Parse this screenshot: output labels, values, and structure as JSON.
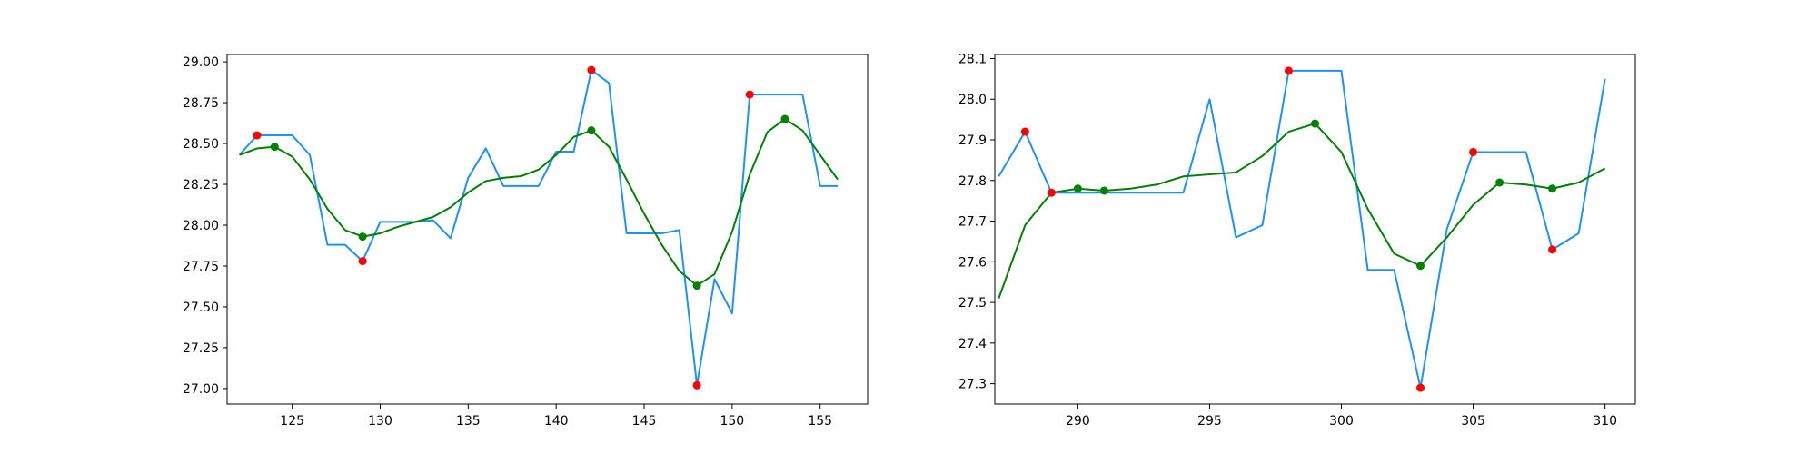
{
  "chart_data": [
    {
      "type": "line",
      "title": "",
      "xlabel": "",
      "ylabel": "",
      "xlim": [
        121.3,
        157.7
      ],
      "ylim": [
        26.905,
        29.045
      ],
      "xticks": [
        125,
        130,
        135,
        140,
        145,
        150,
        155
      ],
      "yticks": [
        27.0,
        27.25,
        27.5,
        27.75,
        28.0,
        28.25,
        28.5,
        28.75,
        29.0
      ],
      "ytick_decimals": 2,
      "grid": false,
      "series": [
        {
          "kind": "line",
          "color": "#1E90FF",
          "x": [
            122,
            123,
            124,
            125,
            126,
            127,
            128,
            129,
            130,
            131,
            132,
            133,
            134,
            135,
            136,
            137,
            138,
            139,
            140,
            141,
            142,
            143,
            144,
            145,
            146,
            147,
            148,
            149,
            150,
            151,
            152,
            153,
            154,
            155,
            156
          ],
          "y": [
            28.43,
            28.55,
            28.55,
            28.55,
            28.43,
            27.88,
            27.88,
            27.78,
            28.02,
            28.02,
            28.02,
            28.03,
            27.92,
            28.29,
            28.47,
            28.24,
            28.24,
            28.24,
            28.45,
            28.45,
            28.95,
            28.87,
            27.95,
            27.95,
            27.95,
            27.97,
            27.02,
            27.67,
            27.46,
            28.8,
            28.8,
            28.8,
            28.8,
            28.24,
            28.24
          ]
        },
        {
          "kind": "line",
          "color": "#008000",
          "x": [
            122,
            123,
            124,
            125,
            126,
            127,
            128,
            129,
            130,
            131,
            132,
            133,
            134,
            135,
            136,
            137,
            138,
            139,
            140,
            141,
            142,
            143,
            144,
            145,
            146,
            147,
            148,
            149,
            150,
            151,
            152,
            153,
            154,
            155,
            156
          ],
          "y": [
            28.43,
            28.47,
            28.48,
            28.42,
            28.28,
            28.1,
            27.97,
            27.93,
            27.95,
            27.99,
            28.02,
            28.05,
            28.11,
            28.2,
            28.27,
            28.29,
            28.3,
            28.34,
            28.43,
            28.54,
            28.58,
            28.48,
            28.28,
            28.07,
            27.88,
            27.72,
            27.63,
            27.7,
            27.96,
            28.31,
            28.57,
            28.65,
            28.58,
            28.43,
            28.28
          ]
        },
        {
          "kind": "scatter",
          "color": "#FF0000",
          "x": [
            123,
            129,
            142,
            148,
            151
          ],
          "y": [
            28.55,
            27.78,
            28.95,
            27.02,
            28.8
          ]
        },
        {
          "kind": "scatter",
          "color": "#008000",
          "x": [
            124,
            129,
            142,
            148,
            153
          ],
          "y": [
            28.48,
            27.93,
            28.58,
            27.63,
            28.65
          ]
        }
      ]
    },
    {
      "type": "line",
      "title": "",
      "xlabel": "",
      "ylabel": "",
      "xlim": [
        286.85,
        311.15
      ],
      "ylim": [
        27.25,
        28.11
      ],
      "xticks": [
        290,
        295,
        300,
        305,
        310
      ],
      "yticks": [
        27.3,
        27.4,
        27.5,
        27.6,
        27.7,
        27.8,
        27.9,
        28.0,
        28.1
      ],
      "ytick_decimals": 1,
      "grid": false,
      "series": [
        {
          "kind": "line",
          "color": "#1E90FF",
          "x": [
            287,
            288,
            289,
            290,
            291,
            292,
            293,
            294,
            295,
            296,
            297,
            298,
            299,
            300,
            301,
            302,
            303,
            304,
            305,
            306,
            307,
            308,
            309,
            310
          ],
          "y": [
            27.81,
            27.92,
            27.77,
            27.77,
            27.77,
            27.77,
            27.77,
            27.77,
            28.0,
            27.66,
            27.69,
            28.07,
            28.07,
            28.07,
            27.58,
            27.58,
            27.29,
            27.68,
            27.87,
            27.87,
            27.87,
            27.63,
            27.67,
            28.05
          ]
        },
        {
          "kind": "line",
          "color": "#008000",
          "x": [
            287,
            288,
            289,
            290,
            291,
            292,
            293,
            294,
            295,
            296,
            297,
            298,
            299,
            300,
            301,
            302,
            303,
            304,
            305,
            306,
            307,
            308,
            309,
            310
          ],
          "y": [
            27.51,
            27.69,
            27.77,
            27.78,
            27.775,
            27.78,
            27.79,
            27.81,
            27.815,
            27.82,
            27.86,
            27.92,
            27.94,
            27.87,
            27.73,
            27.62,
            27.59,
            27.66,
            27.74,
            27.795,
            27.79,
            27.78,
            27.795,
            27.83
          ]
        },
        {
          "kind": "scatter",
          "color": "#FF0000",
          "x": [
            288,
            289,
            298,
            303,
            305,
            308
          ],
          "y": [
            27.92,
            27.77,
            28.07,
            27.29,
            27.87,
            27.63
          ]
        },
        {
          "kind": "scatter",
          "color": "#008000",
          "x": [
            290,
            291,
            299,
            303,
            306,
            308
          ],
          "y": [
            27.78,
            27.775,
            27.94,
            27.59,
            27.795,
            27.78
          ]
        }
      ]
    }
  ]
}
